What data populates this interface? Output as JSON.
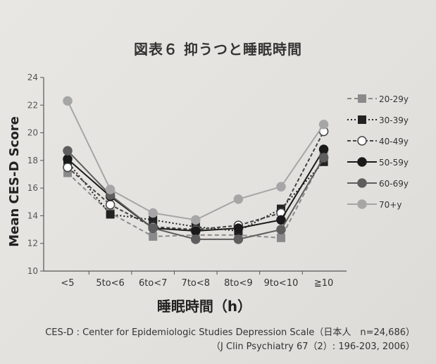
{
  "title": "図表６ 抑うつと睡眠時間",
  "notes": {
    "line1": "CES-D : Center for Epidemiologic Studies Depression Scale（日本人　n=24,686）",
    "line2": "（J Clin Psychiatry 67（2）: 196-203, 2006）"
  },
  "chart_data": {
    "type": "line",
    "xlabel": "睡眠時間（h）",
    "ylabel": "Mean CES-D Score",
    "ylim": [
      10,
      24
    ],
    "yticks": [
      10,
      12,
      14,
      16,
      18,
      20,
      22,
      24
    ],
    "categories": [
      "<5",
      "5to<6",
      "6to<7",
      "7to<8",
      "8to<9",
      "9to<10",
      "≧10"
    ],
    "legend_position": "right",
    "grid": false,
    "series": [
      {
        "name": "20-29y",
        "values": [
          17.1,
          14.2,
          12.5,
          12.6,
          12.6,
          12.4,
          18.3
        ],
        "color": "#8a8a8a",
        "dash": "6,4",
        "marker": "square",
        "fill": "#8a8a8a"
      },
      {
        "name": "30-39y",
        "values": [
          17.9,
          14.1,
          13.7,
          13.2,
          12.9,
          14.5,
          17.9
        ],
        "color": "#222222",
        "dash": "2,3",
        "marker": "square",
        "fill": "#222222"
      },
      {
        "name": "40-49y",
        "values": [
          17.5,
          14.8,
          13.2,
          13.0,
          13.3,
          14.2,
          20.1
        ],
        "color": "#444444",
        "dash": "5,3",
        "marker": "circle",
        "fill": "#ffffff"
      },
      {
        "name": "50-59y",
        "values": [
          18.1,
          15.4,
          13.1,
          12.9,
          13.1,
          13.7,
          18.8
        ],
        "color": "#1a1a1a",
        "dash": "",
        "marker": "circle",
        "fill": "#1a1a1a"
      },
      {
        "name": "60-69y",
        "values": [
          18.7,
          15.5,
          13.1,
          12.3,
          12.3,
          13.0,
          18.2
        ],
        "color": "#5e5e5e",
        "dash": "",
        "marker": "circle",
        "fill": "#5e5e5e"
      },
      {
        "name": "70+y",
        "values": [
          22.3,
          15.9,
          14.2,
          13.7,
          15.2,
          16.1,
          20.6
        ],
        "color": "#a6a6a6",
        "dash": "",
        "marker": "circle",
        "fill": "#a6a6a6"
      }
    ]
  }
}
